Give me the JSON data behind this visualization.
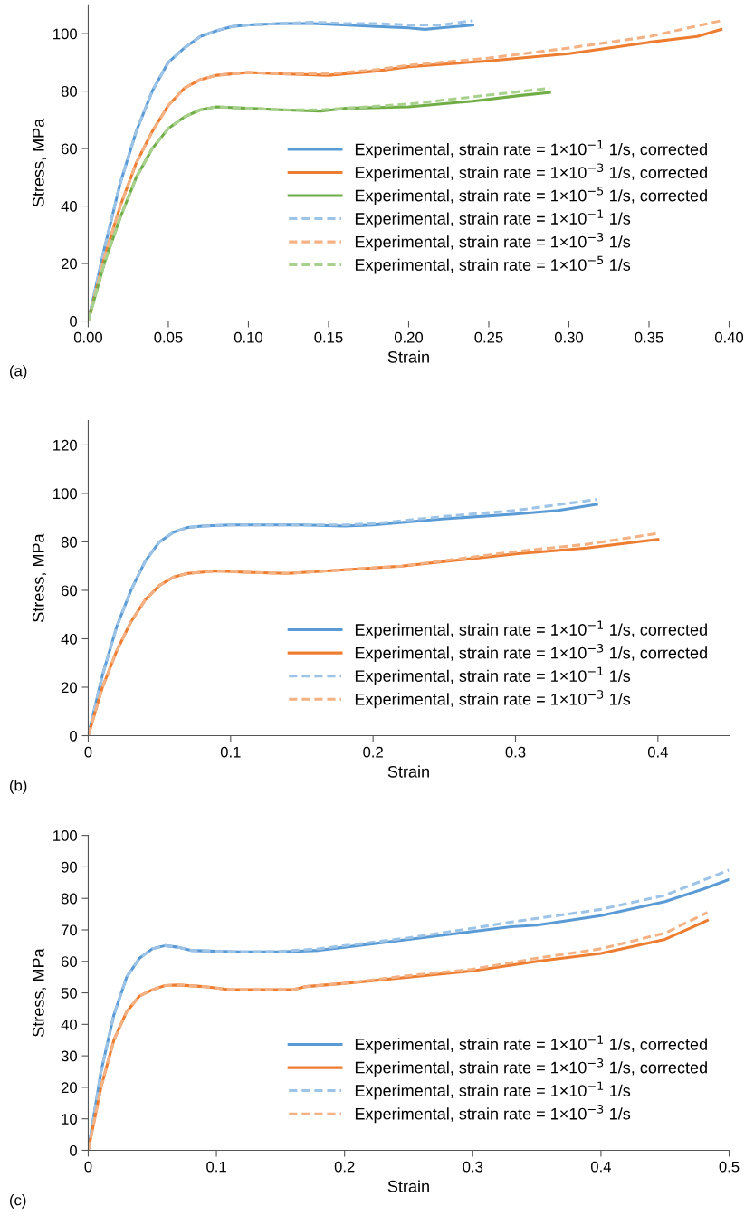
{
  "chart_data": [
    {
      "type": "line",
      "xlabel": "Strain",
      "ylabel": "Stress, MPa",
      "annotations": [
        "(a)"
      ],
      "xlim": [
        0,
        0.4
      ],
      "ylim": [
        0,
        110
      ],
      "xticks": [
        {
          "value": 0,
          "label": "0.00"
        },
        {
          "value": 0.05,
          "label": "0.05"
        },
        {
          "value": 0.1,
          "label": "0.10"
        },
        {
          "value": 0.15,
          "label": "0.15"
        },
        {
          "value": 0.2,
          "label": "0.20"
        },
        {
          "value": 0.25,
          "label": "0.25"
        },
        {
          "value": 0.3,
          "label": "0.30"
        },
        {
          "value": 0.35,
          "label": "0.35"
        },
        {
          "value": 0.4,
          "label": "0.40"
        }
      ],
      "yticks": [
        0,
        20,
        40,
        60,
        80,
        100
      ],
      "grid": false,
      "legend": "right",
      "series": [
        {
          "name": "Experimental, strain rate = 1×10$^{−1}$ 1/s, corrected",
          "color": "#5b9bd5",
          "line_style": "solid",
          "x": [
            0,
            0.01,
            0.02,
            0.03,
            0.04,
            0.05,
            0.06,
            0.07,
            0.08,
            0.09,
            0.1,
            0.12,
            0.14,
            0.16,
            0.18,
            0.2,
            0.21,
            0.22,
            0.24
          ],
          "values": [
            0,
            25,
            48,
            66,
            80,
            90,
            95,
            99,
            101,
            102.5,
            103,
            103.5,
            103.5,
            103,
            102.5,
            102,
            101.5,
            102,
            103
          ]
        },
        {
          "name": "Experimental, strain rate = 1×10$^{−3}$ 1/s, corrected",
          "color": "#ed7d31",
          "line_style": "solid",
          "x": [
            0,
            0.01,
            0.02,
            0.03,
            0.04,
            0.05,
            0.06,
            0.07,
            0.08,
            0.1,
            0.12,
            0.15,
            0.18,
            0.2,
            0.25,
            0.3,
            0.35,
            0.38,
            0.395
          ],
          "values": [
            0,
            22,
            40,
            55,
            66,
            75,
            81,
            84,
            85.5,
            86.5,
            86,
            85.5,
            87,
            88.5,
            90.5,
            93,
            97,
            99,
            101.5
          ]
        },
        {
          "name": "Experimental, strain rate = 1×10$^{−5}$ 1/s, corrected",
          "color": "#70ad47",
          "line_style": "solid",
          "x": [
            0,
            0.01,
            0.02,
            0.03,
            0.04,
            0.05,
            0.06,
            0.07,
            0.08,
            0.1,
            0.12,
            0.145,
            0.16,
            0.2,
            0.24,
            0.27,
            0.288
          ],
          "values": [
            0,
            20,
            36,
            50,
            60,
            67,
            71,
            73.5,
            74.5,
            74,
            73.5,
            73,
            74,
            74.5,
            76.5,
            78.5,
            79.5
          ]
        },
        {
          "name": "Experimental, strain rate = 1×10$^{−1}$ 1/s",
          "color": "#9dc3e6",
          "line_style": "dashed",
          "x": [
            0,
            0.01,
            0.02,
            0.03,
            0.04,
            0.05,
            0.06,
            0.07,
            0.08,
            0.09,
            0.1,
            0.12,
            0.14,
            0.16,
            0.18,
            0.2,
            0.22,
            0.24
          ],
          "values": [
            0,
            25,
            48,
            66,
            80,
            90,
            95,
            99,
            101,
            102.5,
            103,
            103.5,
            104,
            103.5,
            103.5,
            103,
            103,
            104.5
          ]
        },
        {
          "name": "Experimental, strain rate = 1×10$^{−3}$ 1/s",
          "color": "#f4b183",
          "line_style": "dashed",
          "x": [
            0,
            0.01,
            0.02,
            0.03,
            0.04,
            0.05,
            0.06,
            0.07,
            0.08,
            0.1,
            0.12,
            0.15,
            0.18,
            0.2,
            0.25,
            0.3,
            0.35,
            0.395
          ],
          "values": [
            0,
            22,
            40,
            55,
            66,
            75,
            81,
            84,
            85.5,
            86.5,
            86,
            86,
            87.5,
            89,
            91.5,
            95,
            99,
            104.5
          ]
        },
        {
          "name": "Experimental, strain rate = 1×10$^{−5}$ 1/s",
          "color": "#a9d18e",
          "line_style": "dashed",
          "x": [
            0,
            0.01,
            0.02,
            0.03,
            0.04,
            0.05,
            0.06,
            0.07,
            0.08,
            0.1,
            0.12,
            0.145,
            0.16,
            0.2,
            0.24,
            0.288
          ],
          "values": [
            0,
            20,
            36,
            50,
            60,
            67,
            71,
            73.5,
            74.5,
            74,
            73.5,
            73.5,
            74,
            75.5,
            78,
            81
          ]
        }
      ]
    },
    {
      "type": "line",
      "xlabel": "Strain",
      "ylabel": "Stress, MPa",
      "annotations": [
        "(b)"
      ],
      "xlim": [
        0,
        0.45
      ],
      "ylim": [
        0,
        130
      ],
      "xticks": [
        0,
        0.1,
        0.2,
        0.3,
        0.4
      ],
      "yticks": [
        0,
        20,
        40,
        60,
        80,
        100,
        120
      ],
      "grid": false,
      "legend": "bottom right",
      "series": [
        {
          "name": "Experimental, strain rate = 1×10$^{−1}$ 1/s, corrected",
          "color": "#5b9bd5",
          "line_style": "solid",
          "x": [
            0,
            0.01,
            0.02,
            0.03,
            0.04,
            0.05,
            0.06,
            0.07,
            0.08,
            0.1,
            0.15,
            0.18,
            0.2,
            0.25,
            0.3,
            0.33,
            0.357
          ],
          "values": [
            0,
            25,
            45,
            60,
            72,
            80,
            84,
            86,
            86.5,
            87,
            87,
            86.5,
            87,
            89.5,
            91.5,
            93,
            95.5
          ]
        },
        {
          "name": "Experimental, strain rate = 1×10$^{−3}$ 1/s, corrected",
          "color": "#ed7d31",
          "line_style": "solid",
          "x": [
            0,
            0.01,
            0.02,
            0.03,
            0.04,
            0.05,
            0.06,
            0.07,
            0.09,
            0.11,
            0.14,
            0.18,
            0.22,
            0.26,
            0.3,
            0.35,
            0.4
          ],
          "values": [
            0,
            20,
            35,
            47,
            56,
            62,
            65.5,
            67,
            68,
            67.5,
            67,
            68.5,
            70,
            72.5,
            75,
            77.5,
            81
          ]
        },
        {
          "name": "Experimental, strain rate = 1×10$^{−1}$ 1/s",
          "color": "#9dc3e6",
          "line_style": "dashed",
          "x": [
            0,
            0.01,
            0.02,
            0.03,
            0.04,
            0.05,
            0.06,
            0.07,
            0.08,
            0.1,
            0.15,
            0.18,
            0.2,
            0.25,
            0.3,
            0.357
          ],
          "values": [
            0,
            25,
            45,
            60,
            72,
            80,
            84,
            86,
            86.5,
            87,
            87,
            87,
            87.5,
            90.5,
            93,
            97.5
          ]
        },
        {
          "name": "Experimental, strain rate = 1×10$^{−3}$ 1/s",
          "color": "#f4b183",
          "line_style": "dashed",
          "x": [
            0,
            0.01,
            0.02,
            0.03,
            0.04,
            0.05,
            0.06,
            0.07,
            0.09,
            0.11,
            0.14,
            0.18,
            0.22,
            0.26,
            0.3,
            0.35,
            0.4
          ],
          "values": [
            0,
            20,
            35,
            47,
            56,
            62,
            65.5,
            67,
            68,
            67.5,
            67,
            68.5,
            70,
            73,
            76,
            79,
            83.5
          ]
        }
      ]
    },
    {
      "type": "line",
      "xlabel": "Strain",
      "ylabel": "Stress, MPa",
      "annotations": [
        "(c)"
      ],
      "xlim": [
        0,
        0.5
      ],
      "ylim": [
        0,
        100
      ],
      "xticks": [
        0,
        0.1,
        0.2,
        0.3,
        0.4,
        0.5
      ],
      "yticks": [
        0,
        10,
        20,
        30,
        40,
        50,
        60,
        70,
        80,
        90,
        100
      ],
      "grid": false,
      "legend": "bottom right",
      "series": [
        {
          "name": "Experimental, strain rate = 1×10$^{−1}$ 1/s, corrected",
          "color": "#5b9bd5",
          "line_style": "solid",
          "x": [
            0,
            0.01,
            0.02,
            0.03,
            0.04,
            0.05,
            0.06,
            0.07,
            0.08,
            0.1,
            0.12,
            0.15,
            0.18,
            0.2,
            0.25,
            0.3,
            0.33,
            0.35,
            0.4,
            0.45,
            0.48,
            0.5
          ],
          "values": [
            0,
            25,
            43,
            55,
            61,
            64,
            65,
            64.5,
            63.5,
            63.2,
            63,
            63,
            63.5,
            64.5,
            67,
            69.5,
            71,
            71.5,
            74.5,
            79,
            83,
            86
          ]
        },
        {
          "name": "Experimental, strain rate = 1×10$^{−3}$ 1/s, corrected",
          "color": "#ed7d31",
          "line_style": "solid",
          "x": [
            0,
            0.01,
            0.02,
            0.03,
            0.04,
            0.05,
            0.06,
            0.07,
            0.09,
            0.11,
            0.15,
            0.16,
            0.17,
            0.2,
            0.25,
            0.3,
            0.35,
            0.4,
            0.45,
            0.483
          ],
          "values": [
            0,
            20,
            35,
            44,
            49,
            51,
            52.3,
            52.5,
            52,
            51,
            51,
            51,
            52,
            53,
            55,
            57,
            60,
            62.5,
            67,
            73
          ]
        },
        {
          "name": "Experimental, strain rate = 1×10$^{−1}$ 1/s",
          "color": "#9dc3e6",
          "line_style": "dashed",
          "x": [
            0,
            0.01,
            0.02,
            0.03,
            0.04,
            0.05,
            0.06,
            0.07,
            0.08,
            0.1,
            0.12,
            0.15,
            0.18,
            0.2,
            0.25,
            0.3,
            0.33,
            0.4,
            0.45,
            0.5
          ],
          "values": [
            0,
            25,
            43,
            55,
            61,
            64,
            65,
            64.5,
            63.5,
            63.2,
            63,
            63.2,
            64,
            65,
            67.5,
            70.5,
            72.5,
            76.5,
            81,
            89
          ]
        },
        {
          "name": "Experimental, strain rate = 1×10$^{−3}$ 1/s",
          "color": "#f4b183",
          "line_style": "dashed",
          "x": [
            0,
            0.01,
            0.02,
            0.03,
            0.04,
            0.05,
            0.06,
            0.07,
            0.09,
            0.11,
            0.15,
            0.16,
            0.17,
            0.2,
            0.25,
            0.3,
            0.35,
            0.4,
            0.45,
            0.483
          ],
          "values": [
            0,
            20,
            35,
            44,
            49,
            51,
            52.3,
            52.5,
            52,
            51,
            51,
            51,
            52,
            53,
            55.5,
            57.5,
            61,
            64,
            69,
            75.5
          ]
        }
      ]
    }
  ]
}
